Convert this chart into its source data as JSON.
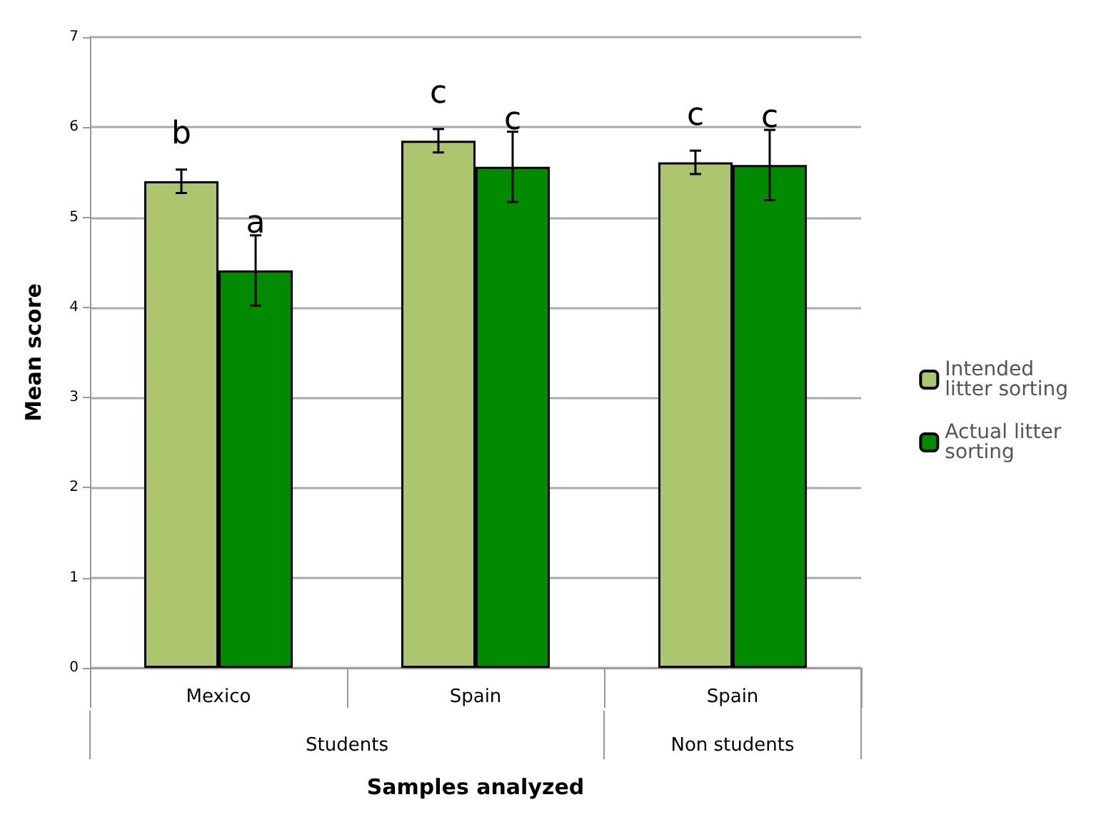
{
  "chart_data": {
    "type": "bar",
    "xlabel": "Samples analyzed",
    "ylabel": "Mean score",
    "categories": [
      "Mexico",
      "Spain",
      "Spain"
    ],
    "series": [
      {
        "name": "Intended litter sorting",
        "color": "#adc56e",
        "values": [
          5.4,
          5.85,
          5.61
        ],
        "errors": [
          0.13,
          0.13,
          0.13
        ],
        "value_labels": [
          "b",
          "c",
          "c"
        ]
      },
      {
        "name": "Actual litter sorting",
        "color": "#008a00",
        "values": [
          4.41,
          5.56,
          5.58
        ],
        "errors": [
          0.39,
          0.39,
          0.39
        ],
        "value_labels": [
          "a",
          "c",
          "c"
        ]
      }
    ],
    "annotations": [
      "Students",
      "Non students"
    ],
    "ylim": [
      0,
      7
    ],
    "yticks": [
      0,
      1,
      2,
      3,
      4,
      5,
      6,
      7
    ],
    "grid": "y",
    "legend": "right"
  }
}
